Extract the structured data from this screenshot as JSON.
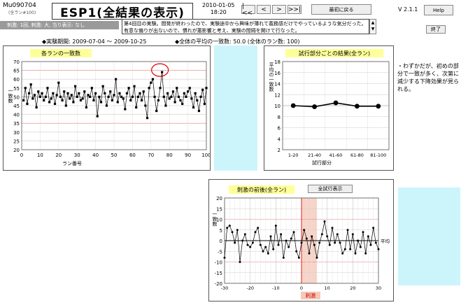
{
  "header": {
    "user_id": "Mu090704",
    "user_sub": "(全ラン#100)",
    "title": "ESP1(全結果の表示)",
    "date": "2010-01-05",
    "time": "18:20",
    "nav": [
      "|<<",
      "<",
      ">",
      ">>|"
    ],
    "first_button": "最初に戻る",
    "version": "V 2.1.1",
    "help_button": "Help",
    "exit_button": "終了",
    "params": "刺激: 1回, 刺激: 大, 当り表示: なし",
    "memo": "第4回目の実験。間発が終わったので、実験途中から興味が薄れて義務感だけでやっているような気分だった。有意な偏りが出ないので、慣れが悪影響と考え、実験の間隔を開けて行なった。"
  },
  "summary": {
    "period": "◆実験期間: 2009-07-04 ～ 2009-10-25",
    "overall": "◆全体の平均の一致数: 50.0 (全体のラン数: 100)"
  },
  "note": "・わずかだが、初めの部分で一致が多く、次第に減少する下降効果が見られる。",
  "chart_data": [
    {
      "type": "line",
      "title": "各ランの一致数",
      "xlabel": "ラン番号",
      "ylabel": "一致数",
      "xlim": [
        0,
        100
      ],
      "ylim": [
        20,
        70
      ],
      "xticks": [
        0,
        10,
        20,
        30,
        40,
        50,
        60,
        70,
        80,
        90,
        100
      ],
      "yticks": [
        20,
        25,
        30,
        35,
        40,
        45,
        50,
        55,
        60,
        65,
        70
      ],
      "values": [
        48,
        55,
        46,
        52,
        57,
        49,
        51,
        44,
        53,
        50,
        52,
        48,
        50,
        55,
        47,
        49,
        52,
        46,
        51,
        58,
        50,
        48,
        53,
        45,
        52,
        49,
        51,
        47,
        56,
        50,
        52,
        48,
        49,
        53,
        44,
        51,
        50,
        55,
        48,
        52,
        39,
        50,
        47,
        56,
        52,
        45,
        50,
        53,
        48,
        51,
        60,
        47,
        52,
        50,
        49,
        43,
        52,
        55,
        48,
        50,
        56,
        44,
        50,
        52,
        48,
        53,
        45,
        38,
        55,
        58,
        60,
        50,
        42,
        48,
        55,
        64,
        50,
        45,
        52,
        49,
        50,
        53,
        47,
        55,
        50,
        48,
        46,
        52,
        50,
        53,
        55,
        49,
        44,
        52,
        48,
        42,
        50,
        54,
        46,
        55
      ]
    },
    {
      "type": "line",
      "title": "試行部分ごとの結果(全ラン)",
      "xlabel": "試行部分",
      "ylabel": "平均の一致数",
      "categories": [
        "1-20",
        "21-40",
        "41-60",
        "61-80",
        "81-100"
      ],
      "values": [
        10.0,
        9.8,
        10.5,
        9.9,
        9.9
      ],
      "ylim": [
        2,
        18
      ],
      "yticks": [
        2,
        4,
        6,
        8,
        10,
        12,
        14,
        16,
        18
      ]
    },
    {
      "type": "line",
      "title": "刺激の前後(全ラン)",
      "button": "全試行表示",
      "xlabel": "刺激",
      "ylabel": "一致数",
      "mean_label": "平均",
      "xlim": [
        -30,
        30
      ],
      "ylim": [
        -20,
        20
      ],
      "xticks": [
        -30,
        -20,
        -10,
        0,
        10,
        20,
        30
      ],
      "yticks": [
        -20,
        -15,
        -10,
        -5,
        0,
        5,
        10,
        15,
        20
      ],
      "x": [
        -30,
        -29,
        -28,
        -27,
        -26,
        -25,
        -24,
        -23,
        -22,
        -21,
        -20,
        -19,
        -18,
        -17,
        -16,
        -15,
        -14,
        -13,
        -12,
        -11,
        -10,
        -9,
        -8,
        -7,
        -6,
        -5,
        -4,
        -3,
        -2,
        -1,
        0,
        1,
        2,
        3,
        4,
        5,
        6,
        7,
        8,
        9,
        10,
        11,
        12,
        13,
        14,
        15,
        16,
        17,
        18,
        19,
        20,
        21,
        22,
        23,
        24,
        25,
        26,
        27,
        28,
        29,
        30
      ],
      "values": [
        -8,
        6,
        7,
        4,
        -1,
        5,
        -10,
        0,
        3,
        -2,
        -3,
        -1,
        4,
        6,
        -2,
        -5,
        -3,
        -6,
        2,
        -4,
        7,
        -2,
        3,
        -8,
        0,
        -3,
        1,
        4,
        -5,
        -8,
        -1,
        5,
        1,
        -6,
        2,
        -2,
        -8,
        -1,
        3,
        9,
        2,
        -2,
        6,
        -1,
        3,
        -1,
        -6,
        -4,
        5,
        -4,
        3,
        -6,
        0,
        -3,
        4,
        -6,
        2,
        -2,
        6,
        -1,
        -4
      ]
    }
  ]
}
